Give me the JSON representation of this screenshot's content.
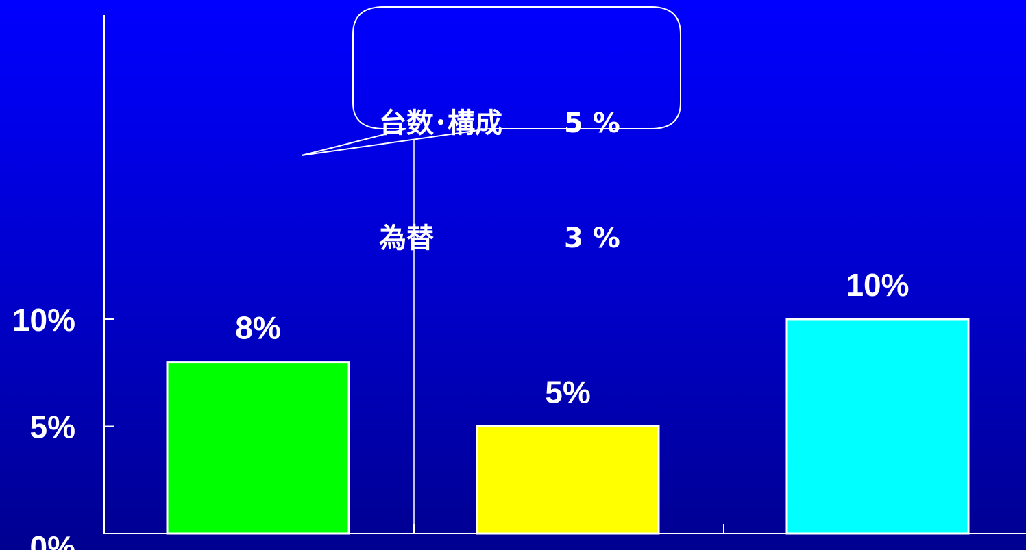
{
  "chart_data": {
    "type": "bar",
    "categories": [
      "",
      "",
      ""
    ],
    "values": [
      8,
      5,
      10
    ],
    "colors": [
      "#00ff00",
      "#ffff00",
      "#00ffff"
    ],
    "data_labels": [
      "8%",
      "5%",
      "10%"
    ],
    "y_ticks": [
      {
        "value": 0,
        "label": "0%"
      },
      {
        "value": 5,
        "label": "5%"
      },
      {
        "value": 10,
        "label": "10%"
      }
    ],
    "ylim": [
      0,
      12
    ],
    "title": "",
    "xlabel": "",
    "ylabel": "",
    "grid": false,
    "legend": "none",
    "callout": {
      "target_bar": 0,
      "rows": [
        {
          "label": "台数･構成",
          "value": "5 %"
        },
        {
          "label": "為替",
          "value": "3 %"
        }
      ]
    }
  },
  "colors": {
    "background_top": "#0000ff",
    "background_bottom": "#000090",
    "axis": "#ffffff",
    "text": "#ffffff"
  }
}
